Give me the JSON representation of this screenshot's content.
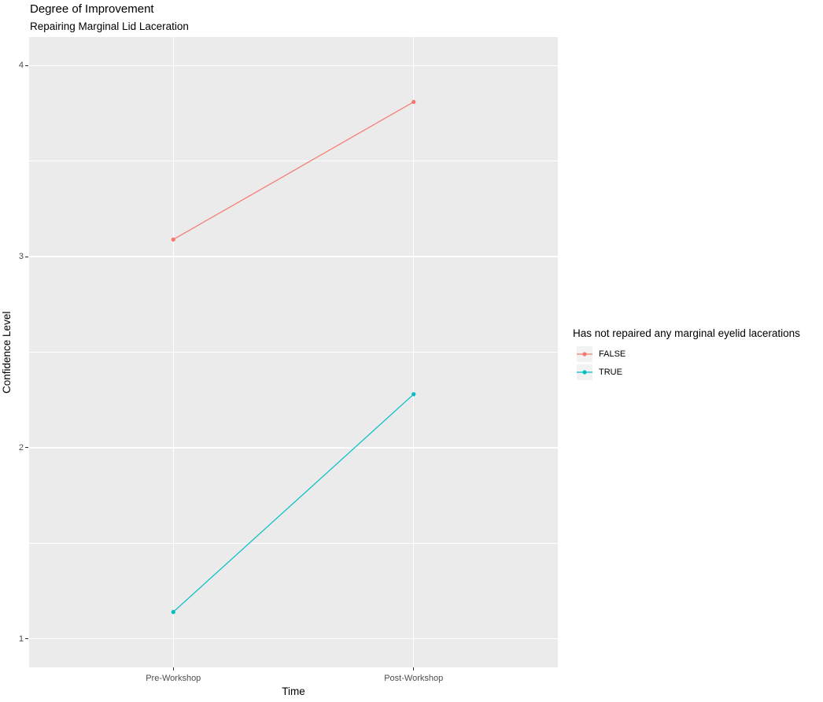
{
  "chart_data": {
    "type": "line",
    "title": "Degree of Improvement",
    "subtitle": "Repairing Marginal Lid Laceration",
    "xlabel": "Time",
    "ylabel": "Confidence Level",
    "categories": [
      "Pre-Workshop",
      "Post-Workshop"
    ],
    "series": [
      {
        "name": "FALSE",
        "color": "#F8766D",
        "values": [
          3.09,
          3.81
        ]
      },
      {
        "name": "TRUE",
        "color": "#00BFC4",
        "values": [
          1.14,
          2.28
        ]
      }
    ],
    "legend": {
      "title": "Has not repaired any marginal eyelid lacerations",
      "position": "right"
    },
    "yticks": [
      1,
      2,
      3,
      4
    ],
    "yminor": [
      1.5,
      2.5,
      3.5
    ],
    "ylim": [
      0.85,
      4.15
    ],
    "grid": true,
    "colors": {
      "panel_bg": "#EBEBEB",
      "grid": "#FFFFFF",
      "tick_text": "#4D4D4D",
      "tick_mark": "#333333",
      "legend_key_bg": "#F2F2F2"
    }
  }
}
